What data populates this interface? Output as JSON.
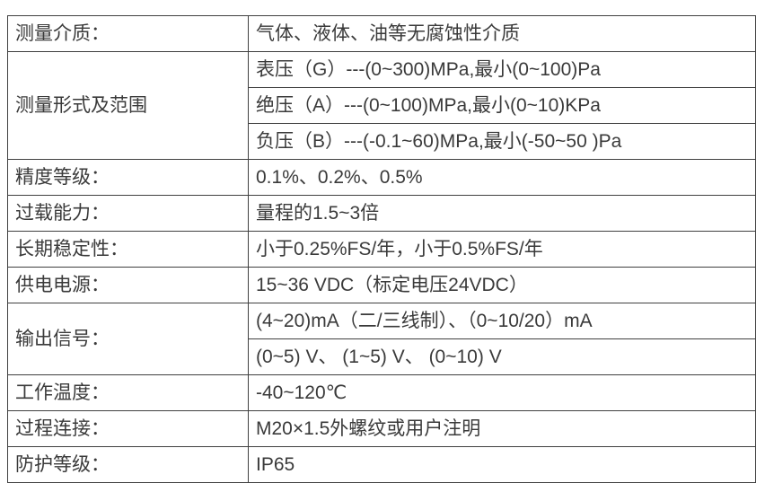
{
  "colors": {
    "background": "#ffffff",
    "text": "#3a3a3a",
    "border": "#404040"
  },
  "spec_table": {
    "rows": [
      {
        "label": "测量介质：",
        "value": "气体、液体、油等无腐蚀性介质"
      },
      {
        "label": "测量形式及范围",
        "sub_values": [
          "表压（G）---(0~300)MPa,最小(0~100)Pa",
          "绝压（A）---(0~100)MPa,最小(0~10)KPa",
          "负压（B）---(-0.1~60)MPa,最小(-50~50 )Pa"
        ]
      },
      {
        "label": "精度等级：",
        "value": "0.1%、0.2%、0.5%"
      },
      {
        "label": "过载能力：",
        "value": "量程的1.5~3倍"
      },
      {
        "label": "长期稳定性：",
        "value": "小于0.25%FS/年，小于0.5%FS/年"
      },
      {
        "label": "供电电源：",
        "value": "15~36 VDC（标定电压24VDC）"
      },
      {
        "label": "输出信号：",
        "sub_values": [
          "(4~20)mA（二/三线制）、（0~10/20）mA",
          "(0~5) V、 (1~5) V、 (0~10) V"
        ]
      },
      {
        "label": "工作温度：",
        "value": "-40~120℃"
      },
      {
        "label": "过程连接：",
        "value": "M20×1.5外螺纹或用户注明"
      },
      {
        "label": "防护等级：",
        "value": "IP65"
      }
    ]
  }
}
